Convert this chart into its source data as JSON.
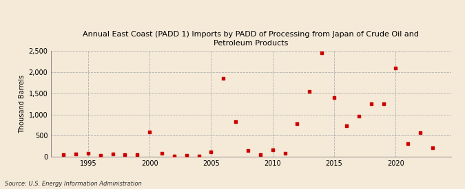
{
  "title": "Annual East Coast (PADD 1) Imports by PADD of Processing from Japan of Crude Oil and\nPetroleum Products",
  "ylabel": "Thousand Barrels",
  "source": "Source: U.S. Energy Information Administration",
  "background_color": "#f5ead8",
  "plot_bg_color": "#f5ead8",
  "marker_color": "#cc0000",
  "xlim": [
    1992,
    2024.5
  ],
  "ylim": [
    0,
    2500
  ],
  "yticks": [
    0,
    500,
    1000,
    1500,
    2000,
    2500
  ],
  "xticks": [
    1995,
    2000,
    2005,
    2010,
    2015,
    2020
  ],
  "years": [
    1993,
    1994,
    1995,
    1996,
    1997,
    1998,
    1999,
    2000,
    2001,
    2002,
    2003,
    2004,
    2005,
    2006,
    2007,
    2008,
    2009,
    2010,
    2011,
    2012,
    2013,
    2014,
    2015,
    2016,
    2017,
    2018,
    2019,
    2020,
    2021,
    2022,
    2023
  ],
  "values": [
    50,
    75,
    90,
    35,
    70,
    50,
    60,
    590,
    80,
    20,
    30,
    25,
    120,
    1860,
    840,
    150,
    50,
    160,
    80,
    790,
    1550,
    2460,
    1400,
    740,
    960,
    1250,
    1250,
    2100,
    310,
    575,
    210
  ]
}
